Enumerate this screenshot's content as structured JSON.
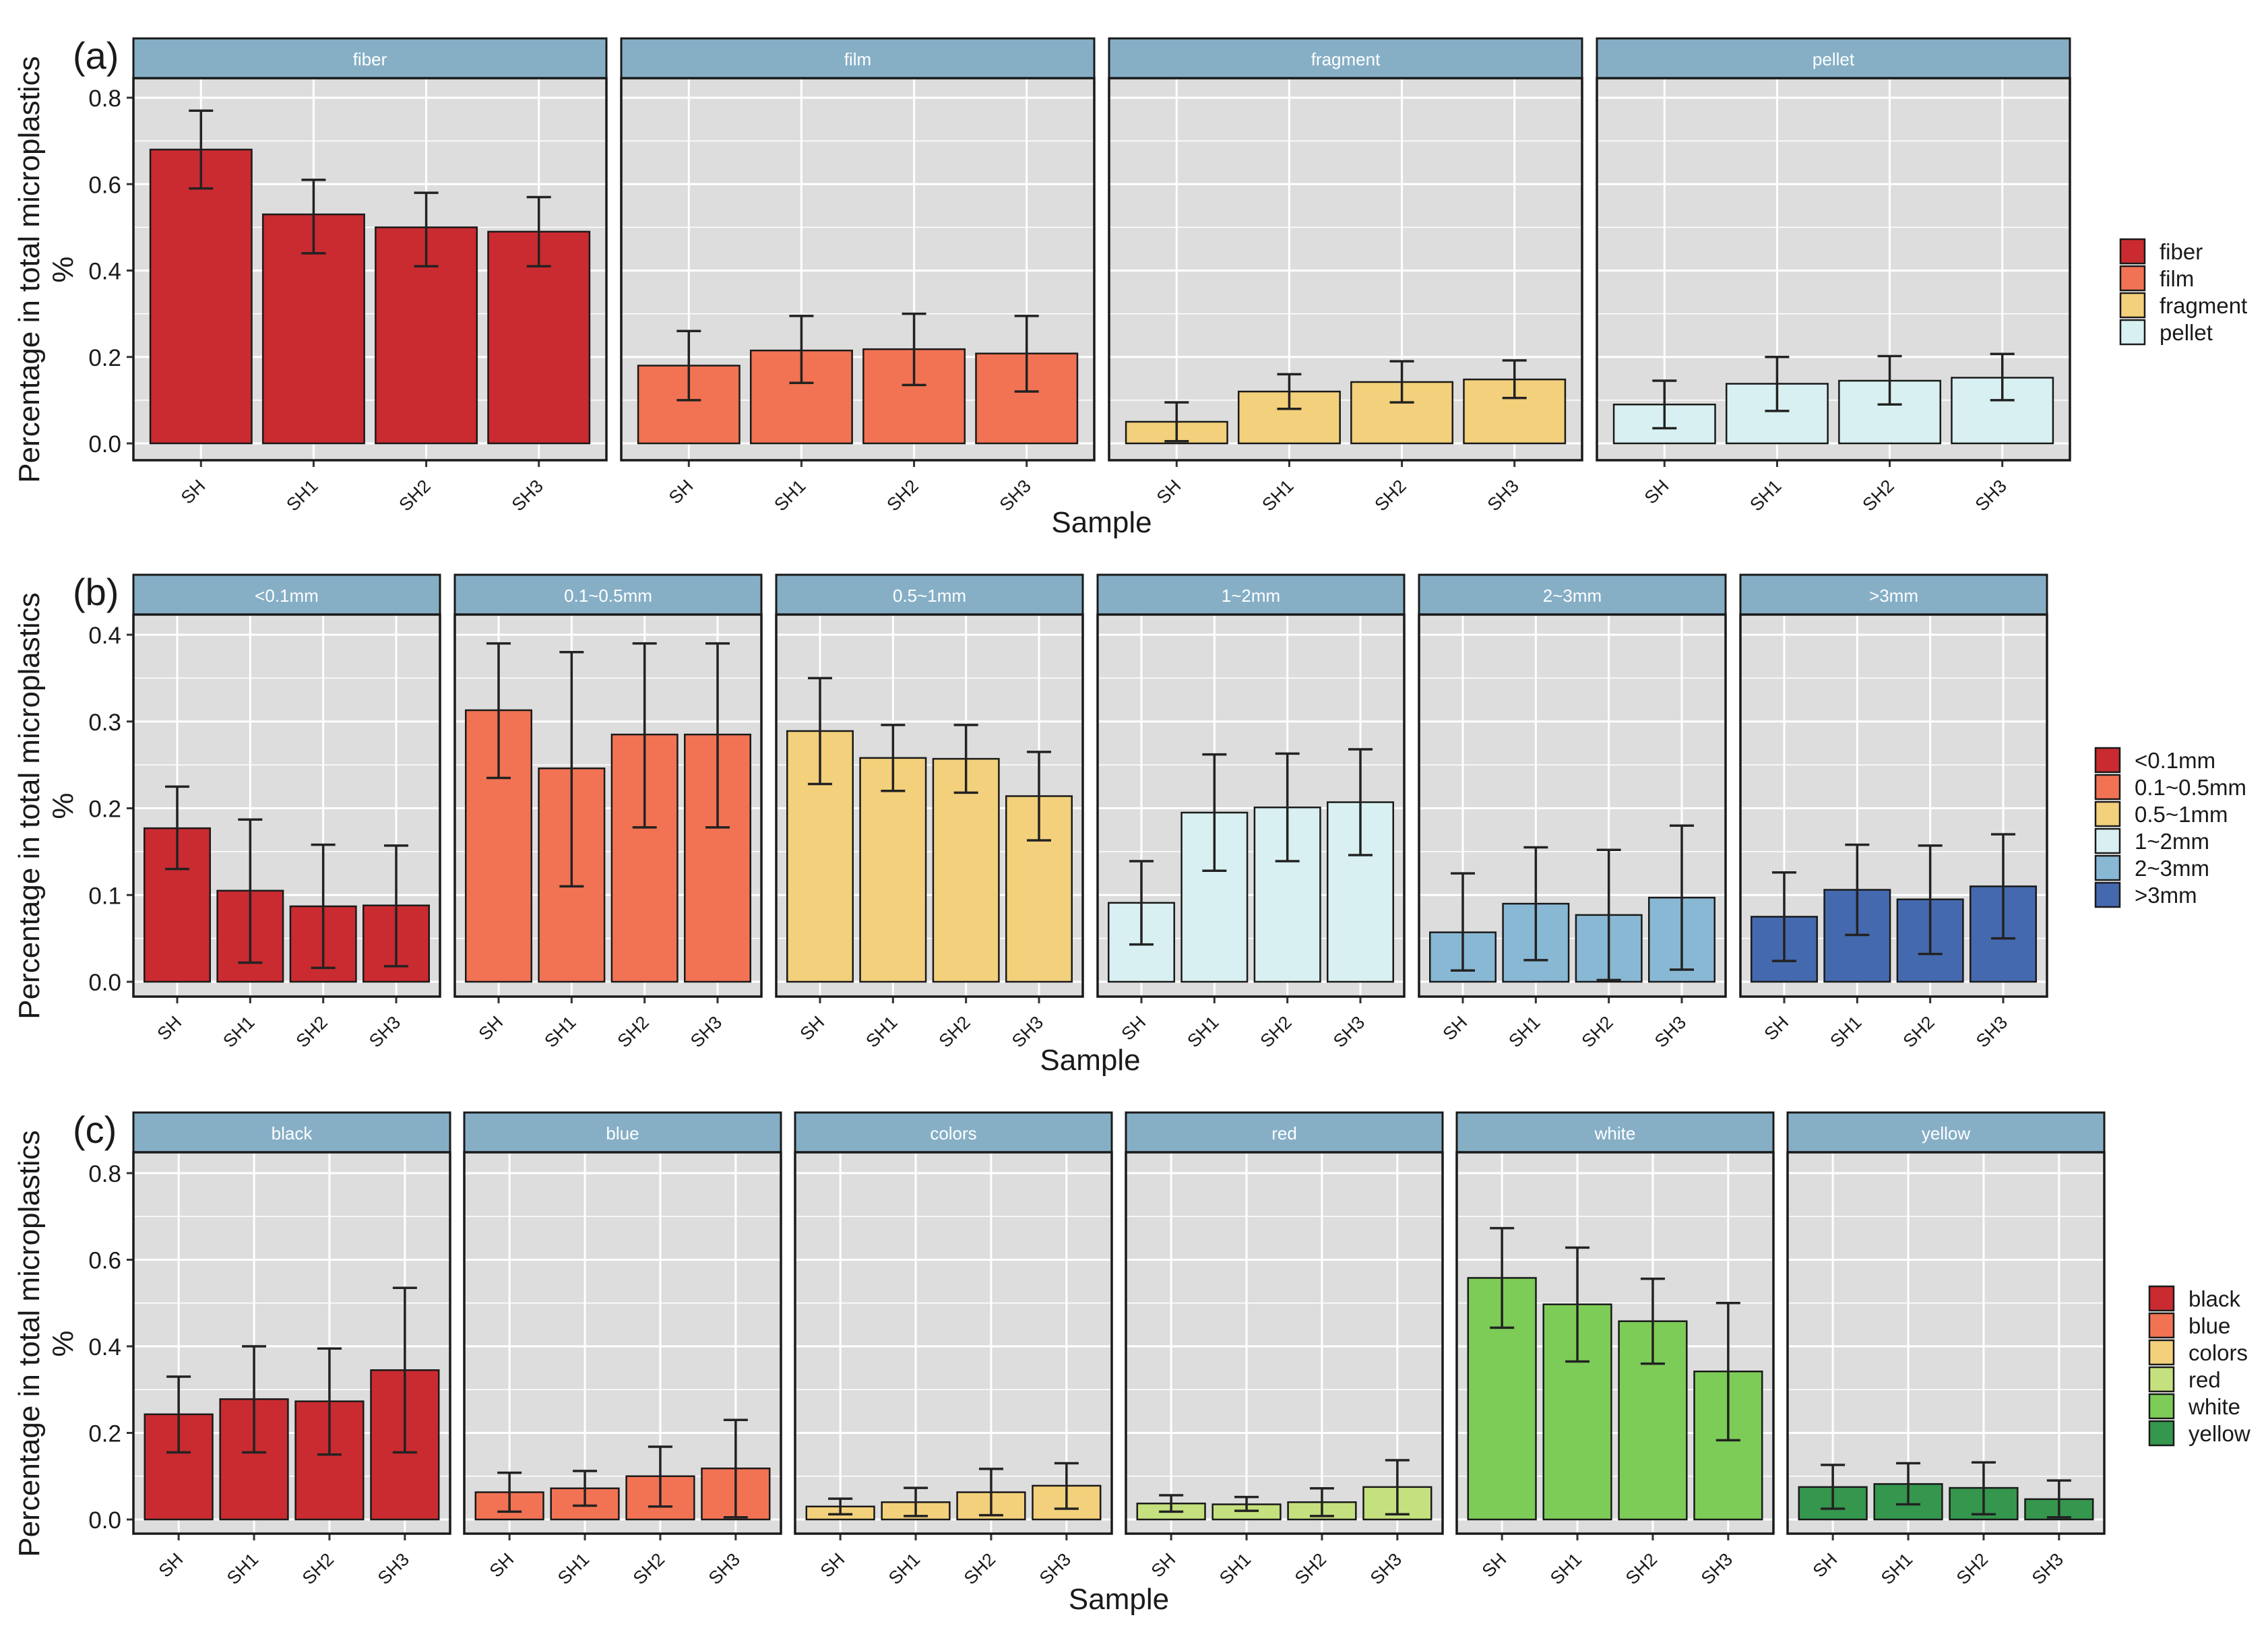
{
  "chart_data": [
    {
      "type": "bar",
      "panel_label": "(a)",
      "facet_by": "shape",
      "categories": [
        "SH",
        "SH1",
        "SH2",
        "SH3"
      ],
      "ylabel": "Percentage in total microplastics %",
      "xlabel": "Sample",
      "ylim": [
        0,
        0.8
      ],
      "yticks": [
        "0.0",
        "0.2",
        "0.4",
        "0.6",
        "0.8"
      ],
      "facets": [
        {
          "name": "fiber",
          "color": "#ca2b30",
          "values": [
            0.68,
            0.53,
            0.5,
            0.49
          ],
          "err_low": [
            0.59,
            0.44,
            0.41,
            0.41
          ],
          "err_high": [
            0.77,
            0.61,
            0.58,
            0.57
          ]
        },
        {
          "name": "film",
          "color": "#f27353",
          "values": [
            0.18,
            0.215,
            0.218,
            0.208
          ],
          "err_low": [
            0.1,
            0.14,
            0.135,
            0.12
          ],
          "err_high": [
            0.26,
            0.295,
            0.3,
            0.295
          ]
        },
        {
          "name": "fragment",
          "color": "#f3d07b",
          "values": [
            0.05,
            0.12,
            0.142,
            0.148
          ],
          "err_low": [
            0.005,
            0.08,
            0.095,
            0.105
          ],
          "err_high": [
            0.095,
            0.16,
            0.19,
            0.192
          ]
        },
        {
          "name": "pellet",
          "color": "#d8f0f1",
          "values": [
            0.09,
            0.138,
            0.145,
            0.152
          ],
          "err_low": [
            0.035,
            0.075,
            0.09,
            0.1
          ],
          "err_high": [
            0.145,
            0.2,
            0.202,
            0.207
          ]
        }
      ],
      "legend": [
        "fiber",
        "film",
        "fragment",
        "pellet"
      ]
    },
    {
      "type": "bar",
      "panel_label": "(b)",
      "facet_by": "size",
      "categories": [
        "SH",
        "SH1",
        "SH2",
        "SH3"
      ],
      "ylabel": "Percentage in total microplastics %",
      "xlabel": "Sample",
      "ylim": [
        0,
        0.4
      ],
      "yticks": [
        "0.0",
        "0.1",
        "0.2",
        "0.3",
        "0.4"
      ],
      "facets": [
        {
          "name": "<0.1mm",
          "color": "#ca2b30",
          "values": [
            0.177,
            0.105,
            0.087,
            0.088
          ],
          "err_low": [
            0.13,
            0.022,
            0.016,
            0.018
          ],
          "err_high": [
            0.225,
            0.187,
            0.158,
            0.157
          ]
        },
        {
          "name": "0.1~0.5mm",
          "color": "#f27353",
          "values": [
            0.313,
            0.246,
            0.285,
            0.285
          ],
          "err_low": [
            0.235,
            0.11,
            0.178,
            0.178
          ],
          "err_high": [
            0.39,
            0.38,
            0.39,
            0.39
          ]
        },
        {
          "name": "0.5~1mm",
          "color": "#f3d07b",
          "values": [
            0.289,
            0.258,
            0.257,
            0.214
          ],
          "err_low": [
            0.228,
            0.22,
            0.218,
            0.163
          ],
          "err_high": [
            0.35,
            0.296,
            0.296,
            0.265
          ]
        },
        {
          "name": "1~2mm",
          "color": "#d8f0f1",
          "values": [
            0.091,
            0.195,
            0.201,
            0.207
          ],
          "err_low": [
            0.043,
            0.128,
            0.139,
            0.146
          ],
          "err_high": [
            0.139,
            0.262,
            0.263,
            0.268
          ]
        },
        {
          "name": "2~3mm",
          "color": "#88b8d4",
          "values": [
            0.057,
            0.09,
            0.077,
            0.097
          ],
          "err_low": [
            0.013,
            0.025,
            0.002,
            0.014
          ],
          "err_high": [
            0.125,
            0.155,
            0.152,
            0.18
          ]
        },
        {
          "name": ">3mm",
          "color": "#4569ae",
          "values": [
            0.075,
            0.106,
            0.095,
            0.11
          ],
          "err_low": [
            0.024,
            0.054,
            0.032,
            0.05
          ],
          "err_high": [
            0.126,
            0.158,
            0.157,
            0.17
          ]
        }
      ],
      "legend": [
        "<0.1mm",
        "0.1~0.5mm",
        "0.5~1mm",
        "1~2mm",
        "2~3mm",
        ">3mm"
      ]
    },
    {
      "type": "bar",
      "panel_label": "(c)",
      "facet_by": "color",
      "categories": [
        "SH",
        "SH1",
        "SH2",
        "SH3"
      ],
      "ylabel": "Percentage in total microplastics %",
      "xlabel": "Sample",
      "ylim": [
        0,
        0.8
      ],
      "yticks": [
        "0.0",
        "0.2",
        "0.4",
        "0.6",
        "0.8"
      ],
      "facets": [
        {
          "name": "black",
          "color": "#ca2b30",
          "values": [
            0.243,
            0.278,
            0.273,
            0.345
          ],
          "err_low": [
            0.155,
            0.155,
            0.15,
            0.155
          ],
          "err_high": [
            0.33,
            0.4,
            0.395,
            0.535
          ]
        },
        {
          "name": "blue",
          "color": "#f27353",
          "values": [
            0.063,
            0.072,
            0.1,
            0.118
          ],
          "err_low": [
            0.018,
            0.032,
            0.03,
            0.005
          ],
          "err_high": [
            0.108,
            0.112,
            0.168,
            0.23
          ]
        },
        {
          "name": "colors",
          "color": "#f3d07b",
          "values": [
            0.03,
            0.04,
            0.063,
            0.078
          ],
          "err_low": [
            0.012,
            0.008,
            0.01,
            0.025
          ],
          "err_high": [
            0.048,
            0.073,
            0.117,
            0.13
          ]
        },
        {
          "name": "red",
          "color": "#c5e07e",
          "values": [
            0.037,
            0.035,
            0.04,
            0.075
          ],
          "err_low": [
            0.018,
            0.02,
            0.008,
            0.012
          ],
          "err_high": [
            0.056,
            0.052,
            0.072,
            0.137
          ]
        },
        {
          "name": "white",
          "color": "#7dcc57",
          "values": [
            0.558,
            0.497,
            0.458,
            0.342
          ],
          "err_low": [
            0.443,
            0.365,
            0.36,
            0.183
          ],
          "err_high": [
            0.673,
            0.628,
            0.556,
            0.5
          ]
        },
        {
          "name": "yellow",
          "color": "#35964d",
          "values": [
            0.075,
            0.082,
            0.073,
            0.047
          ],
          "err_low": [
            0.025,
            0.035,
            0.012,
            0.005
          ],
          "err_high": [
            0.126,
            0.13,
            0.132,
            0.09
          ]
        }
      ],
      "legend": [
        "black",
        "blue",
        "colors",
        "red",
        "white",
        "yellow"
      ]
    }
  ]
}
